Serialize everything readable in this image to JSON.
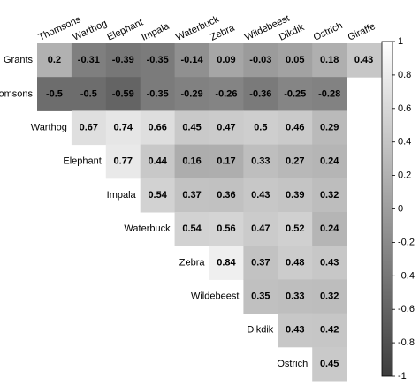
{
  "chart_data": {
    "type": "heatmap",
    "title": "",
    "columns": [
      "Thomsons",
      "Warthog",
      "Elephant",
      "Impala",
      "Waterbuck",
      "Zebra",
      "Wildebeest",
      "Dikdik",
      "Ostrich",
      "Giraffe"
    ],
    "rows": [
      {
        "label": "Grants",
        "start": 0,
        "values": [
          0.2,
          -0.31,
          -0.39,
          -0.35,
          -0.14,
          0.09,
          -0.03,
          0.05,
          0.18,
          0.43
        ]
      },
      {
        "label": "Thomsons",
        "start": 0,
        "values": [
          -0.5,
          -0.5,
          -0.59,
          -0.35,
          -0.29,
          -0.26,
          -0.36,
          -0.25,
          -0.28
        ]
      },
      {
        "label": "Warthog",
        "start": 1,
        "values": [
          0.67,
          0.74,
          0.66,
          0.45,
          0.47,
          0.5,
          0.46,
          0.29
        ]
      },
      {
        "label": "Elephant",
        "start": 2,
        "values": [
          0.77,
          0.44,
          0.16,
          0.17,
          0.33,
          0.27,
          0.24
        ]
      },
      {
        "label": "Impala",
        "start": 3,
        "values": [
          0.54,
          0.37,
          0.36,
          0.43,
          0.39,
          0.32
        ]
      },
      {
        "label": "Waterbuck",
        "start": 4,
        "values": [
          0.54,
          0.56,
          0.47,
          0.52,
          0.24
        ]
      },
      {
        "label": "Zebra",
        "start": 5,
        "values": [
          0.84,
          0.37,
          0.48,
          0.43
        ]
      },
      {
        "label": "Wildebeest",
        "start": 6,
        "values": [
          0.35,
          0.33,
          0.32
        ]
      },
      {
        "label": "Dikdik",
        "start": 7,
        "values": [
          0.43,
          0.42
        ]
      },
      {
        "label": "Ostrich",
        "start": 8,
        "values": [
          0.45
        ]
      }
    ],
    "colorbar": {
      "min": -1,
      "max": 1,
      "ticks": [
        1,
        0.8,
        0.6,
        0.4,
        0.2,
        0,
        -0.2,
        -0.4,
        -0.6,
        -0.8,
        -1
      ],
      "tick_labels": [
        "1",
        "0.8",
        "0.6",
        "0.4",
        "0.2",
        "0",
        "-0.2",
        "-0.4",
        "-0.6",
        "-0.8",
        "-1"
      ],
      "high_color": "#ffffff",
      "low_color": "#3c3c3c"
    }
  }
}
